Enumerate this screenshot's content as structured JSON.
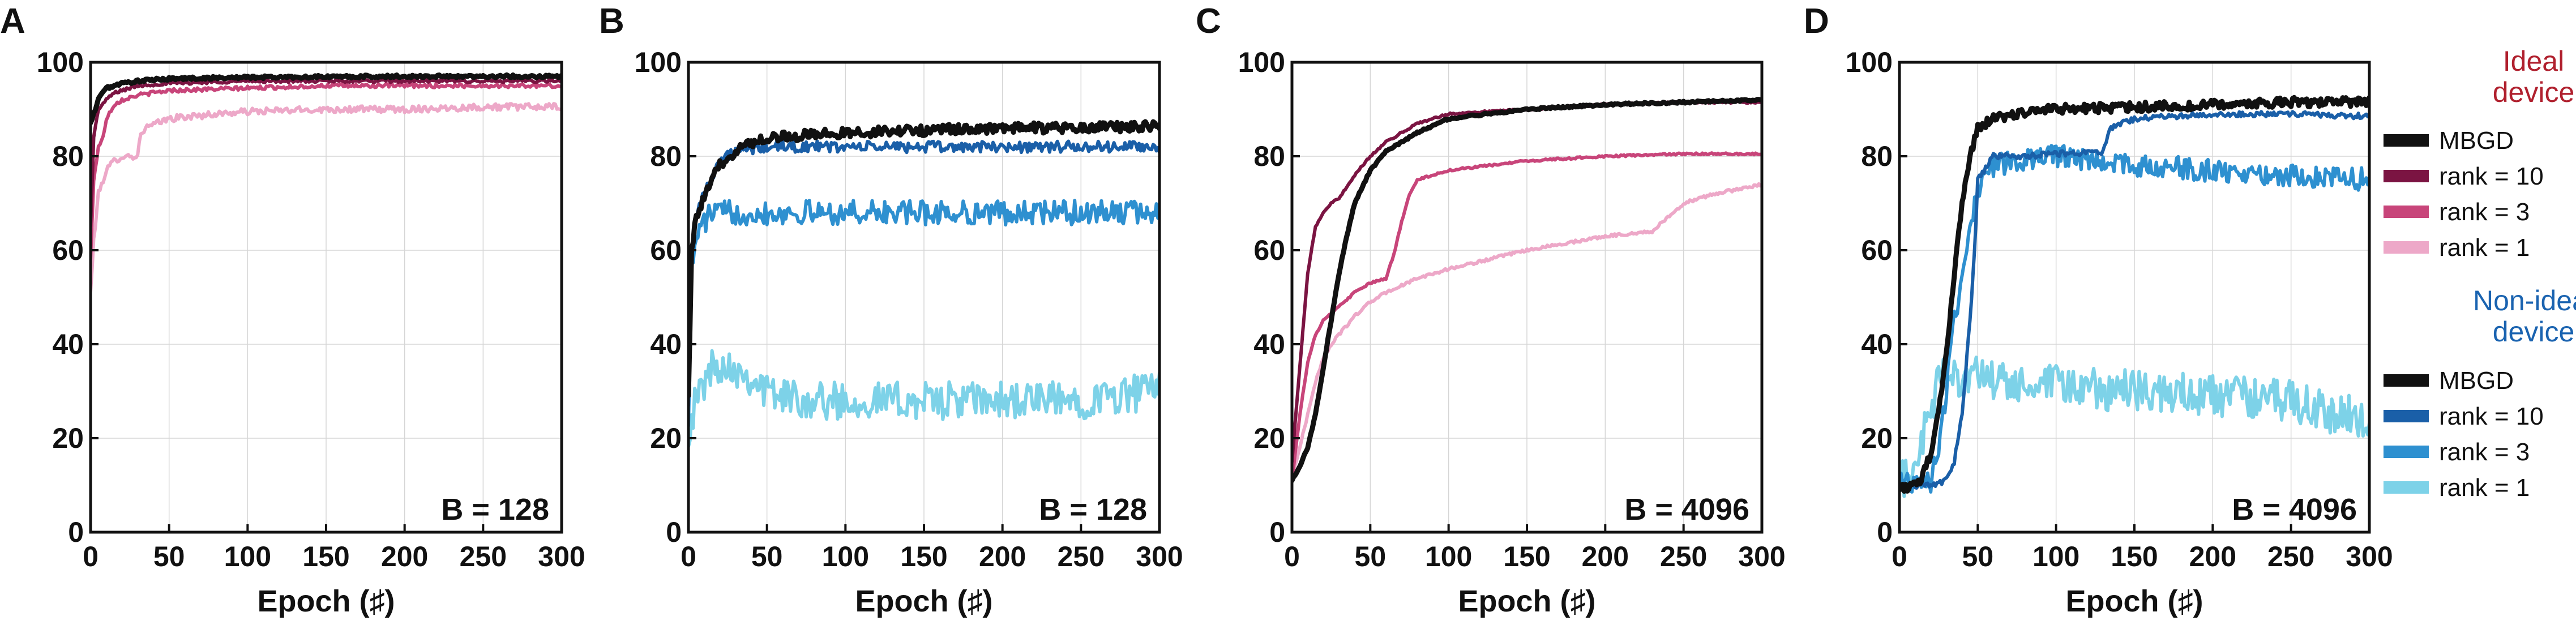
{
  "colors": {
    "ideal_title": "#b0202e",
    "nonideal_title": "#1a63b0"
  },
  "legend": {
    "ideal_title_line1": "Ideal",
    "ideal_title_line2": "device",
    "nonideal_title_line1": "Non-ideal",
    "nonideal_title_line2": "device",
    "ideal": [
      {
        "label": "MBGD",
        "color": "#111111"
      },
      {
        "label": "rank = 10",
        "color": "#7b1442"
      },
      {
        "label": "rank = 3",
        "color": "#c8457a"
      },
      {
        "label": "rank = 1",
        "color": "#eda8c8"
      }
    ],
    "nonideal": [
      {
        "label": "MBGD",
        "color": "#111111"
      },
      {
        "label": "rank = 10",
        "color": "#1a5fa8"
      },
      {
        "label": "rank = 3",
        "color": "#2e90d0"
      },
      {
        "label": "rank = 1",
        "color": "#7dd2e8"
      }
    ]
  },
  "chart_data": [
    {
      "panel": "A",
      "type": "line",
      "annotation": "B = 128",
      "xlabel": "Epoch (♯)",
      "xlim": [
        0,
        300
      ],
      "ylim": [
        0,
        100
      ],
      "xticks": [
        "0",
        "50",
        "100",
        "150",
        "200",
        "250",
        "300"
      ],
      "yticks": [
        "0",
        "20",
        "40",
        "60",
        "80",
        "100"
      ],
      "grid": true,
      "series": [
        {
          "name": "rank = 1",
          "color": "#eda8c8",
          "noise": 0.7,
          "x": [
            0,
            2,
            5,
            10,
            15,
            20,
            30,
            32,
            35,
            50,
            80,
            100,
            150,
            200,
            250,
            300
          ],
          "y": [
            51,
            62,
            72,
            77,
            79,
            80,
            80,
            85,
            86,
            88,
            89,
            89.5,
            90,
            90,
            90.5,
            90.5
          ]
        },
        {
          "name": "rank = 3",
          "color": "#c8457a",
          "noise": 0.4,
          "x": [
            0,
            2,
            5,
            8,
            10,
            15,
            20,
            30,
            50,
            100,
            150,
            200,
            300
          ],
          "y": [
            58,
            75,
            82,
            84,
            88,
            91,
            92,
            93,
            94,
            94.5,
            95,
            95,
            95
          ]
        },
        {
          "name": "rank = 10",
          "color": "#7b1442",
          "noise": 0.3,
          "x": [
            0,
            2,
            5,
            10,
            15,
            20,
            30,
            50,
            100,
            200,
            300
          ],
          "y": [
            65,
            84,
            90,
            92,
            93.5,
            94,
            95,
            95.5,
            96,
            96,
            96
          ]
        },
        {
          "name": "MBGD",
          "color": "#111111",
          "noise": 0.3,
          "x": [
            0,
            2,
            4,
            6,
            10,
            15,
            20,
            30,
            50,
            100,
            200,
            300
          ],
          "y": [
            87,
            89,
            91,
            93,
            94.5,
            95,
            95.5,
            96,
            96.5,
            96.8,
            97,
            97
          ]
        }
      ]
    },
    {
      "panel": "B",
      "type": "line",
      "annotation": "B = 128",
      "xlabel": "Epoch (♯)",
      "xlim": [
        0,
        300
      ],
      "ylim": [
        0,
        100
      ],
      "xticks": [
        "0",
        "50",
        "100",
        "150",
        "200",
        "250",
        "300"
      ],
      "yticks": [
        "0",
        "20",
        "40",
        "60",
        "80",
        "100"
      ],
      "grid": true,
      "series": [
        {
          "name": "rank = 1",
          "color": "#7dd2e8",
          "noise": 4.0,
          "x": [
            0,
            5,
            10,
            15,
            20,
            30,
            40,
            50,
            60,
            80,
            100,
            150,
            200,
            250,
            295,
            300
          ],
          "y": [
            22,
            28,
            32,
            35,
            36,
            35,
            33,
            30,
            29,
            28,
            28,
            28,
            28,
            28,
            30,
            33
          ]
        },
        {
          "name": "rank = 3",
          "color": "#2e90d0",
          "noise": 2.6,
          "x": [
            0,
            2,
            5,
            10,
            15,
            20,
            30,
            50,
            100,
            150,
            200,
            250,
            300
          ],
          "y": [
            25,
            55,
            63,
            66,
            68,
            68,
            68,
            68,
            68,
            68,
            68,
            68,
            68
          ]
        },
        {
          "name": "rank = 10",
          "color": "#1a5fa8",
          "noise": 1.2,
          "x": [
            0,
            2,
            5,
            10,
            15,
            20,
            25,
            30,
            50,
            100,
            150,
            200,
            250,
            300
          ],
          "y": [
            28,
            60,
            68,
            72,
            76,
            79,
            80,
            81,
            82,
            82,
            82,
            82,
            82,
            82
          ]
        },
        {
          "name": "MBGD",
          "color": "#111111",
          "noise": 1.1,
          "x": [
            0,
            2,
            5,
            10,
            15,
            20,
            25,
            30,
            40,
            50,
            100,
            150,
            200,
            250,
            300
          ],
          "y": [
            30,
            60,
            67,
            71,
            75,
            78,
            80,
            81,
            83,
            84,
            85,
            85.5,
            86,
            86,
            86.5
          ]
        }
      ]
    },
    {
      "panel": "C",
      "type": "line",
      "annotation": "B = 4096",
      "xlabel": "Epoch (♯)",
      "xlim": [
        0,
        300
      ],
      "ylim": [
        0,
        100
      ],
      "xticks": [
        "0",
        "50",
        "100",
        "150",
        "200",
        "250",
        "300"
      ],
      "yticks": [
        "0",
        "20",
        "40",
        "60",
        "80",
        "100"
      ],
      "grid": true,
      "series": [
        {
          "name": "rank = 1",
          "color": "#eda8c8",
          "noise": 0.3,
          "x": [
            0,
            5,
            10,
            15,
            20,
            25,
            30,
            40,
            50,
            60,
            80,
            100,
            150,
            200,
            230,
            240,
            250,
            270,
            300
          ],
          "y": [
            12,
            18,
            25,
            32,
            37,
            40,
            42,
            46,
            49,
            51,
            54,
            56,
            60,
            63,
            64,
            67,
            70,
            72,
            74
          ]
        },
        {
          "name": "rank = 3",
          "color": "#c8457a",
          "noise": 0.2,
          "x": [
            0,
            5,
            10,
            15,
            20,
            30,
            40,
            50,
            60,
            65,
            70,
            75,
            80,
            100,
            150,
            200,
            250,
            300
          ],
          "y": [
            11,
            25,
            36,
            42,
            45,
            48,
            51,
            53,
            54,
            59,
            66,
            72,
            75,
            77,
            79,
            80,
            80.5,
            80.5
          ]
        },
        {
          "name": "rank = 10",
          "color": "#7b1442",
          "noise": 0.2,
          "x": [
            0,
            5,
            10,
            15,
            20,
            25,
            30,
            40,
            50,
            60,
            80,
            100,
            150,
            200,
            250,
            300
          ],
          "y": [
            15,
            35,
            55,
            65,
            68,
            70,
            71,
            76,
            80,
            83,
            87,
            89,
            90,
            91,
            91.5,
            91.5
          ]
        },
        {
          "name": "MBGD",
          "color": "#111111",
          "noise": 0.2,
          "x": [
            0,
            5,
            10,
            15,
            20,
            25,
            30,
            35,
            40,
            50,
            60,
            80,
            100,
            150,
            200,
            250,
            300
          ],
          "y": [
            11,
            14,
            18,
            25,
            35,
            45,
            55,
            63,
            70,
            77,
            81,
            85,
            88,
            90,
            91,
            91.5,
            92
          ]
        }
      ]
    },
    {
      "panel": "D",
      "type": "line",
      "annotation": "B = 4096",
      "xlabel": "Epoch (♯)",
      "xlim": [
        0,
        300
      ],
      "ylim": [
        0,
        100
      ],
      "xticks": [
        "0",
        "50",
        "100",
        "150",
        "200",
        "250",
        "300"
      ],
      "yticks": [
        "0",
        "20",
        "40",
        "60",
        "80",
        "100"
      ],
      "grid": true,
      "series": [
        {
          "name": "rank = 1",
          "color": "#7dd2e8",
          "noise": 4.5,
          "x": [
            0,
            5,
            10,
            15,
            20,
            25,
            30,
            40,
            50,
            60,
            80,
            100,
            150,
            200,
            250,
            280,
            300
          ],
          "y": [
            10,
            12,
            15,
            20,
            25,
            32,
            35,
            33,
            33,
            32,
            31,
            31,
            30,
            29,
            28,
            25,
            24
          ]
        },
        {
          "name": "rank = 3",
          "color": "#2e90d0",
          "noise": 2.5,
          "x": [
            0,
            10,
            20,
            25,
            30,
            35,
            40,
            45,
            50,
            55,
            60,
            80,
            100,
            130,
            150,
            200,
            250,
            300
          ],
          "y": [
            11,
            11,
            11,
            18,
            30,
            45,
            55,
            65,
            73,
            76,
            78,
            79,
            80,
            79,
            78,
            77,
            76,
            75
          ]
        },
        {
          "name": "rank = 10",
          "color": "#1a5fa8",
          "noise": 0.6,
          "x": [
            0,
            20,
            30,
            35,
            40,
            45,
            48,
            50,
            60,
            80,
            100,
            130,
            135,
            150,
            200,
            250,
            300
          ],
          "y": [
            10,
            10,
            11,
            15,
            25,
            45,
            60,
            75,
            80,
            80,
            80.5,
            81,
            86,
            88,
            89,
            89,
            88.5
          ]
        },
        {
          "name": "MBGD",
          "color": "#111111",
          "noise": 1.0,
          "x": [
            0,
            10,
            15,
            20,
            25,
            30,
            35,
            40,
            45,
            50,
            60,
            80,
            100,
            150,
            200,
            250,
            300
          ],
          "y": [
            9,
            10,
            12,
            17,
            25,
            38,
            55,
            70,
            80,
            86,
            88,
            89.5,
            90,
            90.5,
            91,
            91.5,
            91.5
          ]
        }
      ]
    }
  ]
}
